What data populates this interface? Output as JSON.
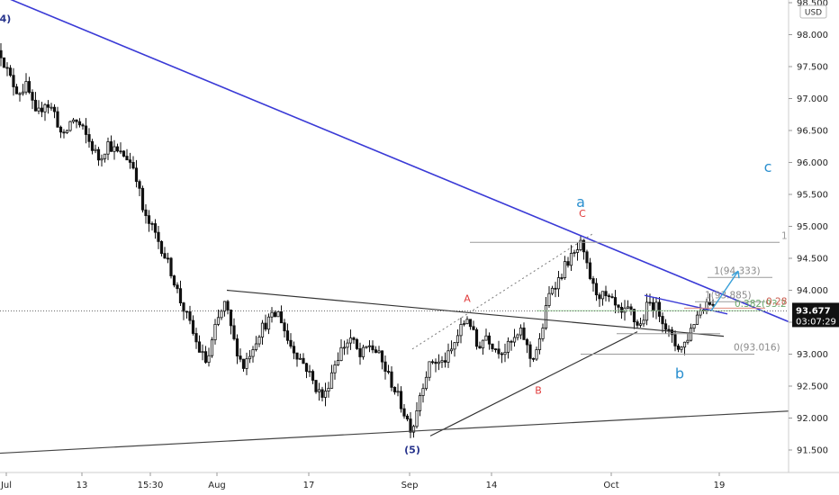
{
  "chart_data": {
    "type": "candlestick",
    "currency": "USD",
    "ylim": [
      91.35,
      98.5
    ],
    "y_ticks": [
      91.5,
      92.0,
      92.5,
      93.0,
      93.5,
      94.0,
      94.5,
      95.0,
      95.5,
      96.0,
      96.5,
      97.0,
      97.5,
      98.0,
      98.5
    ],
    "y_tick_labels": [
      "91.500",
      "92.000",
      "92.500",
      "93.000",
      "93.500",
      "94.000",
      "94.500",
      "95.000",
      "95.500",
      "96.000",
      "96.500",
      "97.000",
      "97.500",
      "98.000",
      "98.500"
    ],
    "x_tick_labels": [
      "Jul",
      "13",
      "15:30",
      "Aug",
      "17",
      "Sep",
      "14",
      "Oct",
      "19"
    ],
    "last_price": {
      "value": 93.677,
      "label": "93.677",
      "countdown": "03:07:29"
    },
    "price_path": [
      [
        0,
        97.75
      ],
      [
        10,
        97.35
      ],
      [
        20,
        97.1
      ],
      [
        30,
        97.2
      ],
      [
        40,
        96.7
      ],
      [
        50,
        96.95
      ],
      [
        60,
        96.8
      ],
      [
        70,
        96.35
      ],
      [
        80,
        96.7
      ],
      [
        90,
        96.55
      ],
      [
        100,
        96.3
      ],
      [
        110,
        96.05
      ],
      [
        120,
        96.3
      ],
      [
        130,
        96.15
      ],
      [
        140,
        96.1
      ],
      [
        150,
        95.9
      ],
      [
        160,
        95.15
      ],
      [
        170,
        94.95
      ],
      [
        180,
        94.65
      ],
      [
        190,
        94.3
      ],
      [
        200,
        93.85
      ],
      [
        210,
        93.5
      ],
      [
        220,
        93.1
      ],
      [
        230,
        92.85
      ],
      [
        240,
        93.45
      ],
      [
        250,
        93.8
      ],
      [
        260,
        93.2
      ],
      [
        270,
        92.8
      ],
      [
        280,
        93.1
      ],
      [
        290,
        93.4
      ],
      [
        300,
        93.55
      ],
      [
        310,
        93.65
      ],
      [
        320,
        93.2
      ],
      [
        330,
        93.0
      ],
      [
        340,
        92.8
      ],
      [
        350,
        92.5
      ],
      [
        360,
        92.3
      ],
      [
        370,
        92.8
      ],
      [
        380,
        93.1
      ],
      [
        390,
        93.25
      ],
      [
        400,
        92.95
      ],
      [
        410,
        93.15
      ],
      [
        420,
        93.0
      ],
      [
        430,
        92.7
      ],
      [
        440,
        92.4
      ],
      [
        450,
        92.05
      ],
      [
        458,
        91.8
      ],
      [
        465,
        92.3
      ],
      [
        472,
        92.65
      ],
      [
        480,
        92.9
      ],
      [
        490,
        92.85
      ],
      [
        500,
        93.0
      ],
      [
        510,
        93.35
      ],
      [
        520,
        93.6
      ],
      [
        530,
        93.1
      ],
      [
        540,
        93.3
      ],
      [
        550,
        93.1
      ],
      [
        560,
        93.05
      ],
      [
        570,
        93.2
      ],
      [
        580,
        93.35
      ],
      [
        590,
        92.9
      ],
      [
        600,
        93.2
      ],
      [
        605,
        93.6
      ],
      [
        612,
        94.05
      ],
      [
        620,
        94.15
      ],
      [
        630,
        94.45
      ],
      [
        638,
        94.55
      ],
      [
        645,
        94.7
      ],
      [
        650,
        94.45
      ],
      [
        660,
        94.0
      ],
      [
        670,
        93.9
      ],
      [
        680,
        93.8
      ],
      [
        690,
        93.6
      ],
      [
        700,
        93.7
      ],
      [
        705,
        93.5
      ],
      [
        712,
        93.45
      ],
      [
        720,
        93.8
      ],
      [
        728,
        93.75
      ],
      [
        735,
        93.6
      ],
      [
        742,
        93.35
      ],
      [
        750,
        93.15
      ],
      [
        758,
        93.1
      ],
      [
        765,
        93.3
      ],
      [
        772,
        93.55
      ],
      [
        780,
        93.75
      ],
      [
        788,
        93.85
      ],
      [
        795,
        93.68
      ]
    ],
    "annotations": {
      "trendlines": [
        {
          "color": "#3a3ad6",
          "width": 1.6,
          "from": [
            0,
            98.62
          ],
          "to": [
            903,
            93.35
          ]
        },
        {
          "color": "#3a3ad6",
          "width": 1.4,
          "from": [
            716,
            93.92
          ],
          "to": [
            808,
            93.63
          ]
        },
        {
          "color": "#333333",
          "width": 1.2,
          "from": [
            252,
            94.0
          ],
          "to": [
            804,
            93.28
          ]
        },
        {
          "color": "#333333",
          "width": 1.2,
          "from": [
            478,
            91.72
          ],
          "to": [
            708,
            93.35
          ]
        },
        {
          "color": "#444444",
          "width": 1.2,
          "from": [
            0,
            91.45
          ],
          "to": [
            903,
            92.13
          ]
        },
        {
          "color": "#7a7a7a",
          "width": 1.0,
          "from": [
            458,
            93.08
          ],
          "to": [
            658,
            94.88
          ],
          "dash": "2,3"
        }
      ],
      "levels": [
        {
          "price": 94.75,
          "x1": 522,
          "x2": 866,
          "color": "#9a9a9a",
          "label": "1",
          "label_color": "#9a9a9a",
          "label_at": 868
        },
        {
          "price": 94.2,
          "x1": 786,
          "x2": 858,
          "color": "#9a9a9a",
          "label": "1(94.333)",
          "label_color": "#8a8a8a",
          "label_at": 793
        },
        {
          "price": 93.82,
          "x1": 772,
          "x2": 850,
          "color": "#9a9a9a",
          "label": "1(93.885)",
          "label_color": "#8a8a8a",
          "label_at": 783
        },
        {
          "price": 93.68,
          "x1": 596,
          "x2": 850,
          "color": "#9fd89f",
          "label": "0.382(93.2",
          "label_color": "#6aa86a",
          "label_at": 816
        },
        {
          "price": 93.72,
          "x1": 760,
          "x2": 850,
          "color": "#e08a7a",
          "label": "0.28",
          "label_color": "#c8584a",
          "label_at": 851
        },
        {
          "price": 93.32,
          "x1": 685,
          "x2": 800,
          "color": "#9a9a9a",
          "label": "",
          "label_color": "#9a9a9a",
          "label_at": 0
        },
        {
          "price": 93.0,
          "x1": 645,
          "x2": 838,
          "color": "#9a9a9a",
          "label": "0(93.016)",
          "label_color": "#8a8a8a",
          "label_at": 815
        }
      ],
      "projection": {
        "color": "#3aa0d8",
        "from": [
          790,
          93.68
        ],
        "to": [
          820,
          94.3
        ]
      },
      "wave_labels": [
        {
          "text": "4)",
          "x": 6,
          "price": 98.2,
          "color": "#27338c",
          "size": 11,
          "weight": "bold"
        },
        {
          "text": "(5)",
          "x": 458,
          "price": 91.45,
          "color": "#27338c",
          "size": 11,
          "weight": "bold"
        },
        {
          "text": "A",
          "x": 519,
          "price": 93.82,
          "color": "#e03a3a",
          "size": 11,
          "weight": "normal"
        },
        {
          "text": "B",
          "x": 598,
          "price": 92.38,
          "color": "#e03a3a",
          "size": 11,
          "weight": "normal"
        },
        {
          "text": "C",
          "x": 647,
          "price": 95.15,
          "color": "#e03a3a",
          "size": 11,
          "weight": "normal"
        },
        {
          "text": "a",
          "x": 645,
          "price": 95.3,
          "color": "#2a8fcf",
          "size": 16,
          "weight": "normal"
        },
        {
          "text": "b",
          "x": 755,
          "price": 92.62,
          "color": "#2a8fcf",
          "size": 16,
          "weight": "normal"
        },
        {
          "text": "c",
          "x": 853,
          "price": 95.85,
          "color": "#2a8fcf",
          "size": 16,
          "weight": "normal"
        }
      ]
    }
  }
}
